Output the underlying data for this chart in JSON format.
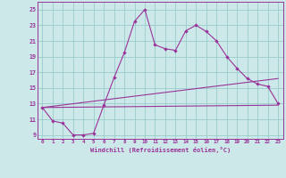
{
  "xlabel": "Windchill (Refroidissement éolien,°C)",
  "bg_color": "#cce8e8",
  "grid_color": "#99cccc",
  "line_color": "#993399",
  "xlim": [
    -0.5,
    23.5
  ],
  "ylim": [
    8.5,
    26.0
  ],
  "yticks": [
    9,
    11,
    13,
    15,
    17,
    19,
    21,
    23,
    25
  ],
  "xticks": [
    0,
    1,
    2,
    3,
    4,
    5,
    6,
    7,
    8,
    9,
    10,
    11,
    12,
    13,
    14,
    15,
    16,
    17,
    18,
    19,
    20,
    21,
    22,
    23
  ],
  "series1_x": [
    0,
    1,
    2,
    3,
    4,
    5,
    6,
    7,
    8,
    9,
    10,
    11,
    12,
    13,
    14,
    15,
    16,
    17,
    18,
    19,
    20,
    21,
    22,
    23
  ],
  "series1_y": [
    12.5,
    10.8,
    10.5,
    9.0,
    9.0,
    9.2,
    12.8,
    16.3,
    19.5,
    23.5,
    25.0,
    20.5,
    20.0,
    19.8,
    22.3,
    23.0,
    22.2,
    21.0,
    19.0,
    17.5,
    16.2,
    15.5,
    15.2,
    13.0
  ],
  "series2_x": [
    0,
    23
  ],
  "series2_y": [
    12.5,
    16.2
  ],
  "series3_x": [
    0,
    23
  ],
  "series3_y": [
    12.5,
    12.8
  ]
}
